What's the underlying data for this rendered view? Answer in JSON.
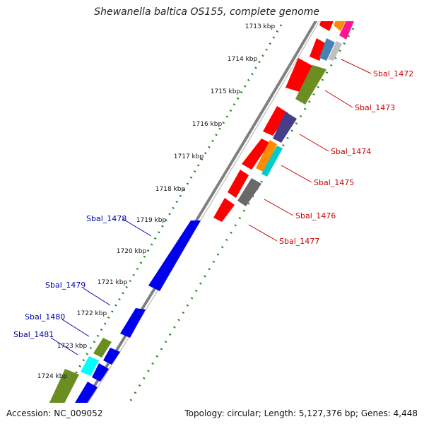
{
  "title": "Shewanella baltica OS155, complete genome",
  "accession": "Accession: NC_009052",
  "summary": "Topology: circular; Length: 5,127,376 bp; Genes: 4,448",
  "ruler": {
    "ticks": [
      "1713 kbp",
      "1714 kbp",
      "1715 kbp",
      "1716 kbp",
      "1717 kbp",
      "1718 kbp",
      "1719 kbp",
      "1720 kbp",
      "1721 kbp",
      "1722 kbp",
      "1723 kbp",
      "1724 kbp"
    ],
    "color": "#228b22"
  },
  "colors": {
    "backbone": "#808080",
    "forward_label": "#cc0000",
    "reverse_label": "#0000aa"
  },
  "forward_genes": [
    {
      "label": "Sbal_1472",
      "color": "#ff0000"
    },
    {
      "label": "Sbal_1473",
      "color": "#ff0000"
    },
    {
      "label": "Sbal_1474",
      "color": "#ff0000"
    },
    {
      "label": "Sbal_1475",
      "color": "#ff0000"
    },
    {
      "label": "Sbal_1476",
      "color": "#ff0000"
    },
    {
      "label": "Sbal_1477",
      "color": "#ff0000"
    }
  ],
  "reverse_genes": [
    {
      "label": "Sbal_1478",
      "color": "#0000ee"
    },
    {
      "label": "Sbal_1479",
      "color": "#0000ee"
    },
    {
      "label": "Sbal_1480",
      "color": "#0000ee"
    },
    {
      "label": "Sbal_1481",
      "color": "#0000ee"
    }
  ]
}
